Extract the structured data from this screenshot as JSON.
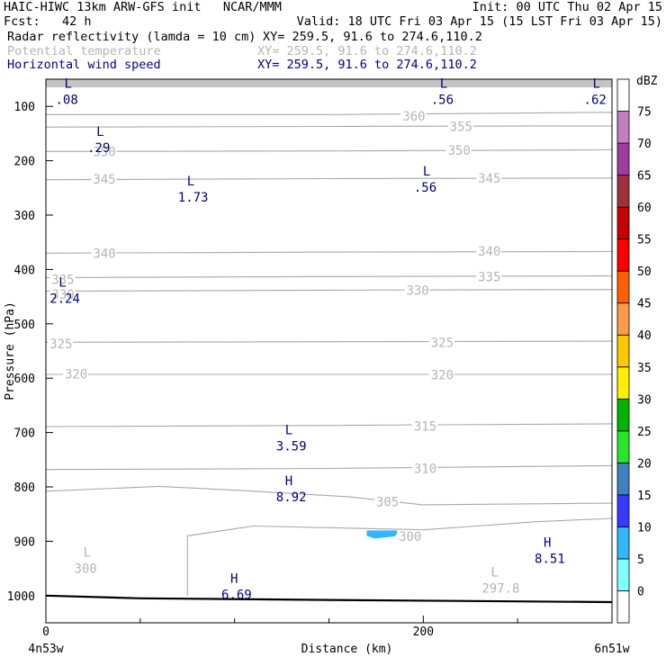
{
  "header": {
    "model": "HAIC-HIWC 13km ARW-GFS init   NCAR/MMM",
    "init": "Init: 00 UTC Thu 02 Apr 15",
    "fcst": "Fcst:   42 h",
    "valid": "Valid: 18 UTC Fri 03 Apr 15 (15 LST Fri 03 Apr 15)",
    "fields": [
      {
        "name": "Radar reflectivity (lamda = 10 cm)",
        "xy": "XY= 259.5, 91.6 to 274.6,110.2",
        "color": "#000000"
      },
      {
        "name": "Potential temperature",
        "xy": "XY= 259.5, 91.6 to 274.6,110.2",
        "color": "#b4b4b4"
      },
      {
        "name": "Horizontal wind speed",
        "xy": "XY= 259.5, 91.6 to 274.6,110.2",
        "color": "#00007f"
      }
    ]
  },
  "chart_data": {
    "type": "contour",
    "xlabel": "Distance (km)",
    "ylabel": "Pressure (hPa)",
    "xlim": [
      0,
      300
    ],
    "ylim_hpa": [
      1050,
      50
    ],
    "x_ticks": [
      0,
      200
    ],
    "x_ticks_minor": [
      50,
      100,
      150,
      250
    ],
    "x_end_labels": {
      "left": "4n53w",
      "right": "6n51w"
    },
    "y_ticks": [
      100,
      200,
      300,
      400,
      500,
      600,
      700,
      800,
      900,
      1000
    ],
    "theta_contours": [
      {
        "label": "360",
        "points": [
          [
            0,
            115
          ],
          [
            150,
            115
          ],
          [
            300,
            111
          ]
        ],
        "labels": [
          [
            189,
            118
          ]
        ]
      },
      {
        "label": "355",
        "points": [
          [
            0,
            138
          ],
          [
            150,
            137
          ],
          [
            300,
            136
          ]
        ],
        "labels": [
          [
            214,
            137
          ]
        ]
      },
      {
        "label": "350",
        "points": [
          [
            0,
            183
          ],
          [
            150,
            182
          ],
          [
            300,
            180
          ]
        ],
        "labels": [
          [
            25,
            183
          ],
          [
            213,
            181
          ]
        ]
      },
      {
        "label": "345",
        "points": [
          [
            0,
            235
          ],
          [
            150,
            233
          ],
          [
            300,
            232
          ]
        ],
        "labels": [
          [
            25,
            234
          ],
          [
            229,
            232
          ]
        ]
      },
      {
        "label": "340",
        "points": [
          [
            0,
            370
          ],
          [
            150,
            368
          ],
          [
            300,
            367
          ]
        ],
        "labels": [
          [
            25,
            370
          ],
          [
            229,
            366
          ]
        ]
      },
      {
        "label": "335",
        "points": [
          [
            0,
            415
          ],
          [
            150,
            413
          ],
          [
            300,
            412
          ]
        ],
        "labels": [
          [
            3,
            418
          ],
          [
            229,
            413
          ]
        ]
      },
      {
        "label": "330",
        "points": [
          [
            0,
            440
          ],
          [
            150,
            438
          ],
          [
            300,
            437
          ]
        ],
        "labels": [
          [
            3,
            446
          ],
          [
            191,
            438
          ]
        ]
      },
      {
        "label": "325",
        "points": [
          [
            0,
            534
          ],
          [
            150,
            533
          ],
          [
            300,
            532
          ]
        ],
        "labels": [
          [
            2,
            537
          ],
          [
            204,
            534
          ]
        ]
      },
      {
        "label": "320",
        "points": [
          [
            0,
            593
          ],
          [
            150,
            593
          ],
          [
            300,
            593
          ]
        ],
        "labels": [
          [
            10,
            592
          ],
          [
            204,
            594
          ]
        ]
      },
      {
        "label": "315",
        "points": [
          [
            0,
            689
          ],
          [
            150,
            687
          ],
          [
            300,
            684
          ]
        ],
        "labels": [
          [
            195,
            688
          ]
        ]
      },
      {
        "label": "310",
        "points": [
          [
            0,
            768
          ],
          [
            150,
            766
          ],
          [
            300,
            761
          ]
        ],
        "labels": [
          [
            195,
            766
          ]
        ]
      },
      {
        "label": "305",
        "points": [
          [
            0,
            808
          ],
          [
            60,
            799
          ],
          [
            100,
            806
          ],
          [
            160,
            818
          ],
          [
            200,
            833
          ],
          [
            300,
            830
          ]
        ],
        "labels": [
          [
            175,
            827
          ]
        ]
      },
      {
        "label": "300",
        "points": [
          [
            75,
            1000
          ],
          [
            75,
            890
          ],
          [
            110,
            872
          ],
          [
            200,
            879
          ],
          [
            260,
            864
          ],
          [
            300,
            858
          ]
        ],
        "labels": [
          [
            187,
            891
          ]
        ]
      }
    ],
    "theta_annotations": [
      {
        "label": "L",
        "value": "300",
        "x": 15,
        "y": 935
      },
      {
        "label": "L",
        "value": "297.8",
        "x": 231,
        "y": 971
      }
    ],
    "wind_extrema": [
      {
        "label": "L",
        "value": ".08",
        "x": 5,
        "y": 72
      },
      {
        "label": "L",
        "value": ".56",
        "x": 204,
        "y": 72
      },
      {
        "label": "L",
        "value": ".62",
        "x": 285,
        "y": 72
      },
      {
        "label": "L",
        "value": ".29",
        "x": 22,
        "y": 161
      },
      {
        "label": "L",
        "value": "1.73",
        "x": 70,
        "y": 252
      },
      {
        "label": "L",
        "value": ".56",
        "x": 195,
        "y": 234
      },
      {
        "label": "L",
        "value": "2.24",
        "x": 2,
        "y": 438
      },
      {
        "label": "L",
        "value": "3.59",
        "x": 122,
        "y": 710
      },
      {
        "label": "H",
        "value": "8.92",
        "x": 122,
        "y": 803
      },
      {
        "label": "H",
        "value": "8.51",
        "x": 259,
        "y": 917
      },
      {
        "label": "H",
        "value": "6.69",
        "x": 93,
        "y": 983
      }
    ],
    "reflectivity_patches": [
      {
        "dbz": 5,
        "points": [
          [
            170,
            880
          ],
          [
            187,
            880
          ],
          [
            185,
            891
          ],
          [
            174,
            895
          ],
          [
            170,
            890
          ]
        ]
      }
    ],
    "terrain": [
      [
        0,
        1000
      ],
      [
        50,
        1005
      ],
      [
        150,
        1008
      ],
      [
        300,
        1012
      ]
    ],
    "top_shading_hpa": 65,
    "colorbar": {
      "unit": "dBZ",
      "levels": [
        0,
        5,
        10,
        15,
        20,
        25,
        30,
        35,
        40,
        45,
        50,
        55,
        60,
        65,
        70,
        75
      ],
      "colors": [
        "#ffffff",
        "#80ffff",
        "#30b8ff",
        "#3838ff",
        "#3e80c0",
        "#28e628",
        "#00b400",
        "#fff000",
        "#ffc800",
        "#ff9a4a",
        "#ff6000",
        "#ff0000",
        "#c80000",
        "#a0303e",
        "#a03ca0",
        "#c080c0",
        "#ffffff"
      ]
    }
  }
}
